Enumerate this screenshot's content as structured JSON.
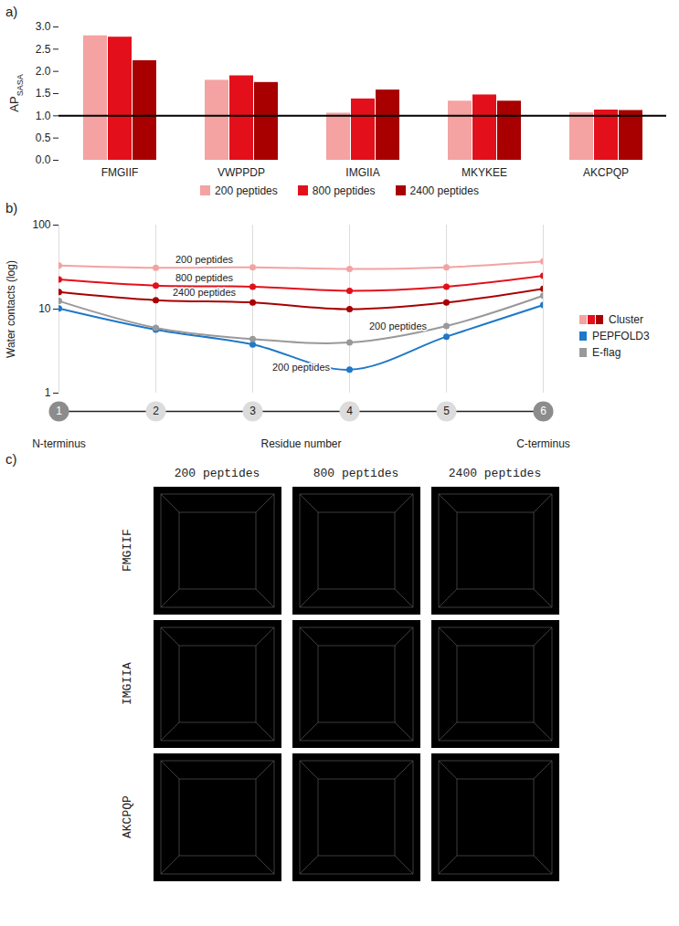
{
  "chart_data": [
    {
      "type": "bar",
      "panel_label": "a)",
      "ylabel": "AP",
      "ylabel_subscript": "SASA",
      "categories": [
        "FMGIIF",
        "VWPPDP",
        "IMGIIA",
        "MKYKEE",
        "AKCPQP"
      ],
      "series": [
        {
          "name": "200 peptides",
          "color": "#f4a2a2",
          "values": [
            2.8,
            1.8,
            1.06,
            1.33,
            1.07
          ]
        },
        {
          "name": "800 peptides",
          "color": "#e3101b",
          "values": [
            2.77,
            1.9,
            1.38,
            1.47,
            1.13
          ]
        },
        {
          "name": "2400 peptides",
          "color": "#a80000",
          "values": [
            2.24,
            1.75,
            1.58,
            1.33,
            1.12
          ]
        }
      ],
      "reference_line": 1.0,
      "ylim": [
        0,
        3
      ],
      "yticks": [
        {
          "value": 0,
          "label": "0.0"
        },
        {
          "value": 0.5,
          "label": "0.5"
        },
        {
          "value": 1,
          "label": "1.0"
        },
        {
          "value": 1.5,
          "label": "1.5"
        },
        {
          "value": 2,
          "label": "2.0"
        },
        {
          "value": 2.5,
          "label": "2.5"
        },
        {
          "value": 3,
          "label": "3.0"
        }
      ],
      "grid": false,
      "legend": "bottom"
    },
    {
      "type": "line",
      "panel_label": "b)",
      "xlabel": "Residue number",
      "ylabel": "Water contacts (log)",
      "x_end_labels": [
        "N-terminus",
        "C-terminus"
      ],
      "x": [
        1,
        2,
        3,
        4,
        5,
        6
      ],
      "series": [
        {
          "name": "Cluster",
          "label": "200 peptides",
          "color": "#f4a2a2",
          "values": [
            33,
            31,
            31.5,
            30,
            31.5,
            37
          ]
        },
        {
          "name": "Cluster",
          "label": "800 peptides",
          "color": "#e3101b",
          "values": [
            22.5,
            19,
            18.5,
            16.5,
            18.5,
            25
          ]
        },
        {
          "name": "Cluster",
          "label": "2400 peptides",
          "color": "#a80000",
          "values": [
            16,
            12.8,
            12,
            10,
            12,
            17.5
          ]
        },
        {
          "name": "PEPFOLD3",
          "label": "200 peptides",
          "color": "#1f78c8",
          "values": [
            10.2,
            5.7,
            3.8,
            1.9,
            4.7,
            11.2
          ]
        },
        {
          "name": "E-flag",
          "label": "200 peptides",
          "color": "#999999",
          "values": [
            12.5,
            6,
            4.4,
            4,
            6.3,
            14.5
          ]
        }
      ],
      "xlim": [
        1,
        6
      ],
      "xticks": [
        1,
        2,
        3,
        4,
        5,
        6
      ],
      "ylim": [
        1,
        100
      ],
      "yticks": [
        1,
        10,
        100
      ],
      "log": "y",
      "grid": true,
      "marker": "circle",
      "legend": "right"
    }
  ],
  "snapshots": {
    "panel_label": "c)",
    "columns": [
      "200 peptides",
      "800 peptides",
      "2400 peptides"
    ],
    "rows": [
      "FMGIIF",
      "IMGIIA",
      "AKCPQP"
    ]
  }
}
